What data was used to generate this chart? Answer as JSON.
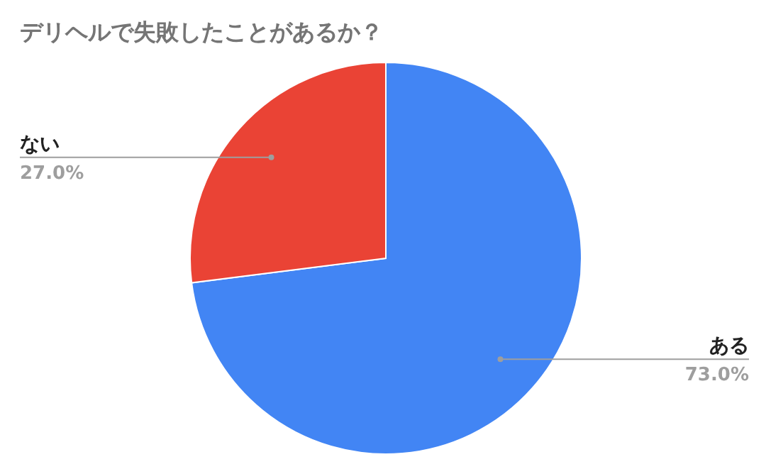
{
  "chart_data": {
    "type": "pie",
    "title": "デリヘルで失敗したことがあるか？",
    "categories": [
      "ある",
      "ない"
    ],
    "values": [
      73,
      27
    ],
    "value_labels": [
      "73.0%",
      "27.0%"
    ],
    "colors": [
      "#4285f4",
      "#ea4335"
    ]
  }
}
